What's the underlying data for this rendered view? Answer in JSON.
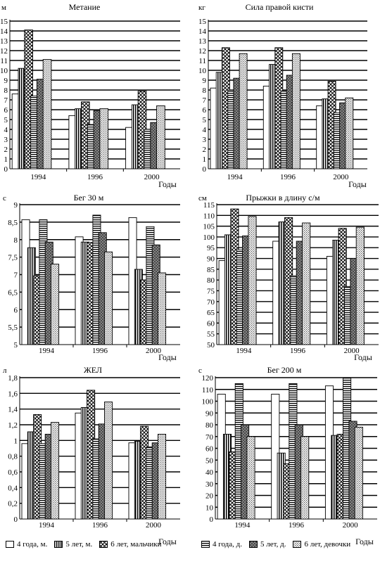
{
  "chart_data": [
    {
      "type": "bar",
      "title": "Метание",
      "unit": "м",
      "xlabel": "Годы",
      "categories": [
        "1994",
        "1996",
        "2000"
      ],
      "ylim": [
        0,
        15
      ],
      "yticks": [
        "0",
        "1",
        "2",
        "3",
        "4",
        "5",
        "6",
        "7",
        "8",
        "9",
        "10",
        "11",
        "12",
        "13",
        "14",
        "15"
      ],
      "series": [
        {
          "name": "4 года, м.",
          "values": [
            7.6,
            5.4,
            4.2
          ]
        },
        {
          "name": "5 лет, м.",
          "values": [
            10.2,
            6.1,
            6.5
          ]
        },
        {
          "name": "6 лет, мальчики",
          "values": [
            14.1,
            6.8,
            7.9
          ]
        },
        {
          "name": "4 года, д.",
          "values": [
            7.4,
            4.5,
            4.0
          ]
        },
        {
          "name": "5 лет, д.",
          "values": [
            9.1,
            5.9,
            4.7
          ]
        },
        {
          "name": "6 лет, девочки",
          "values": [
            11.1,
            6.1,
            6.4
          ]
        }
      ]
    },
    {
      "type": "bar",
      "title": "Сила правой кисти",
      "unit": "кг",
      "xlabel": "Годы",
      "categories": [
        "1994",
        "1996",
        "2000"
      ],
      "ylim": [
        0,
        15
      ],
      "yticks": [
        "0",
        "1",
        "2",
        "3",
        "4",
        "5",
        "6",
        "7",
        "8",
        "9",
        "10",
        "11",
        "12",
        "13",
        "14",
        "15"
      ],
      "series": [
        {
          "name": "4 года, м.",
          "values": [
            8.2,
            8.4,
            6.4
          ]
        },
        {
          "name": "5 лет, м.",
          "values": [
            9.8,
            10.6,
            7.1
          ]
        },
        {
          "name": "6 лет, мальчики",
          "values": [
            12.3,
            12.3,
            8.9
          ]
        },
        {
          "name": "4 года, д.",
          "values": [
            8.0,
            7.9,
            5.7
          ]
        },
        {
          "name": "5 лет, д.",
          "values": [
            9.2,
            9.5,
            6.7
          ]
        },
        {
          "name": "6 лет, девочки",
          "values": [
            11.7,
            11.7,
            7.2
          ]
        }
      ]
    },
    {
      "type": "bar",
      "title": "Бег 30 м",
      "unit": "с",
      "xlabel": "Годы",
      "categories": [
        "1994",
        "1996",
        "2000"
      ],
      "ylim": [
        5,
        9
      ],
      "yticks": [
        "5",
        "5,5",
        "6",
        "6,5",
        "7",
        "7,5",
        "8",
        "8,5",
        "9"
      ],
      "series": [
        {
          "name": "4 года, м.",
          "values": [
            8.57,
            8.08,
            8.63
          ]
        },
        {
          "name": "5 лет, м.",
          "values": [
            7.77,
            7.93,
            7.15
          ]
        },
        {
          "name": "6 лет, мальчики",
          "values": [
            6.97,
            7.92,
            6.85
          ]
        },
        {
          "name": "4 года, д.",
          "values": [
            8.57,
            8.7,
            8.37
          ]
        },
        {
          "name": "5 лет, д.",
          "values": [
            7.93,
            8.2,
            7.85
          ]
        },
        {
          "name": "6 лет, девочки",
          "values": [
            7.3,
            7.65,
            7.05
          ]
        }
      ]
    },
    {
      "type": "bar",
      "title": "Прыжки в длину с/м",
      "unit": "см",
      "xlabel": "Годы",
      "categories": [
        "1994",
        "1996",
        "2000"
      ],
      "ylim": [
        50,
        115
      ],
      "yticks": [
        "50",
        "55",
        "60",
        "65",
        "70",
        "75",
        "80",
        "85",
        "90",
        "95",
        "100",
        "105",
        "110",
        "115"
      ],
      "series": [
        {
          "name": "4 года, м.",
          "values": [
            89,
            98,
            91
          ]
        },
        {
          "name": "5 лет, м.",
          "values": [
            101,
            107,
            98.5
          ]
        },
        {
          "name": "6 лет, мальчики",
          "values": [
            113,
            109,
            104
          ]
        },
        {
          "name": "4 года, д.",
          "values": [
            94,
            82,
            77
          ]
        },
        {
          "name": "5 лет, д.",
          "values": [
            100.5,
            98,
            90
          ]
        },
        {
          "name": "6 лет, девочки",
          "values": [
            109.5,
            106.5,
            104.5
          ]
        }
      ]
    },
    {
      "type": "bar",
      "title": "ЖЕЛ",
      "unit": "л",
      "xlabel": "Годы",
      "categories": [
        "1994",
        "1996",
        "2000"
      ],
      "ylim": [
        0,
        1.8
      ],
      "yticks": [
        "0",
        "0,2",
        "0,4",
        "0,6",
        "0,8",
        "1",
        "1,2",
        "1,4",
        "1,6",
        "1,8"
      ],
      "series": [
        {
          "name": "4 года, м.",
          "values": [
            0.96,
            1.35,
            0.97
          ]
        },
        {
          "name": "5 лет, м.",
          "values": [
            1.11,
            1.42,
            0.99
          ]
        },
        {
          "name": "6 лет, мальчики",
          "values": [
            1.33,
            1.64,
            1.18
          ]
        },
        {
          "name": "4 года, д.",
          "values": [
            0.96,
            1.02,
            0.92
          ]
        },
        {
          "name": "5 лет, д.",
          "values": [
            1.08,
            1.21,
            0.97
          ]
        },
        {
          "name": "6 лет, девочки",
          "values": [
            1.23,
            1.49,
            1.08
          ]
        }
      ]
    },
    {
      "type": "bar",
      "title": "Бег 200 м",
      "unit": "с",
      "xlabel": "Годы",
      "categories": [
        "1994",
        "1996",
        "2000"
      ],
      "ylim": [
        0,
        120
      ],
      "yticks": [
        "0",
        "10",
        "20",
        "30",
        "40",
        "50",
        "60",
        "70",
        "80",
        "90",
        "100",
        "110",
        "120"
      ],
      "series": [
        {
          "name": "4 года, м.",
          "values": [
            106,
            106,
            113
          ]
        },
        {
          "name": "5 лет, м.",
          "values": [
            72,
            56,
            71
          ]
        },
        {
          "name": "6 лет, мальчики",
          "values": [
            57,
            47,
            72
          ]
        },
        {
          "name": "4 года, д.",
          "values": [
            115,
            115,
            120
          ]
        },
        {
          "name": "5 лет, д.",
          "values": [
            80,
            80,
            83
          ]
        },
        {
          "name": "6 лет, девочки",
          "values": [
            70,
            70,
            78
          ]
        }
      ]
    }
  ],
  "legend": {
    "boys": [
      {
        "label": "4 года, м.",
        "pattern": "plain"
      },
      {
        "label": "5 лет, м.",
        "pattern": "vstripe"
      },
      {
        "label": "6 лет, мальчики",
        "pattern": "diamond"
      }
    ],
    "girls": [
      {
        "label": "4 года, д.",
        "pattern": "hstripe"
      },
      {
        "label": "5 лет, д.",
        "pattern": "grey-diamond"
      },
      {
        "label": "6 лет, девочки",
        "pattern": "dots"
      }
    ]
  }
}
